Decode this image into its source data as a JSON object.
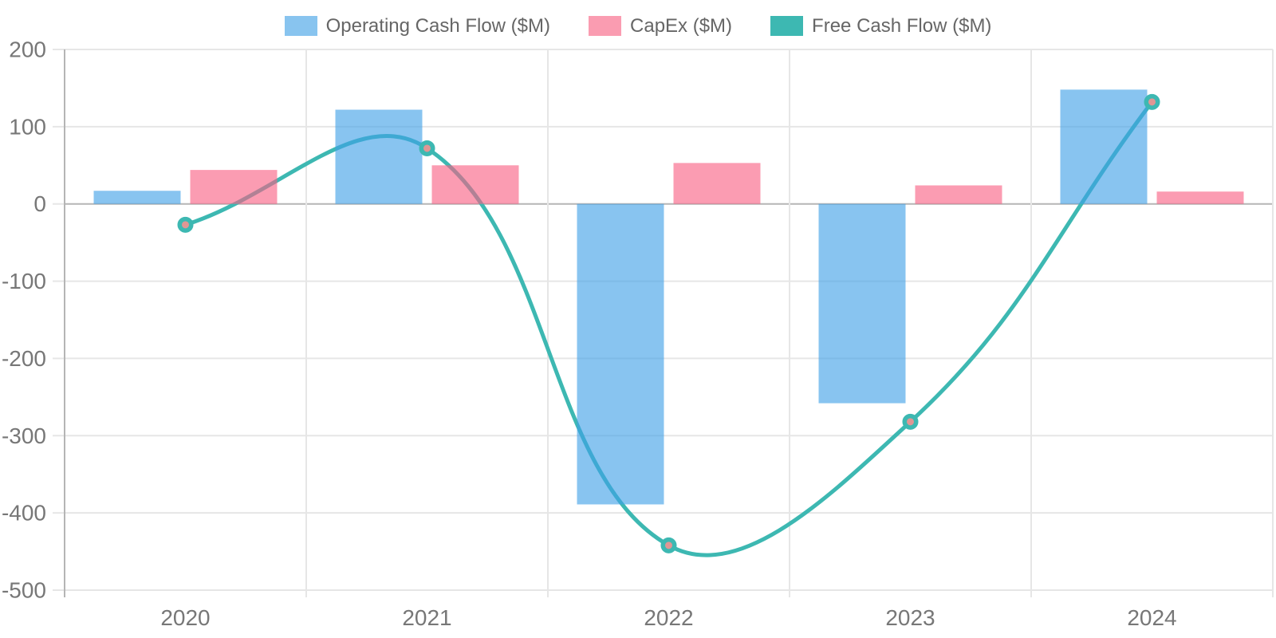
{
  "legend": {
    "items": [
      {
        "label": "Operating Cash Flow ($M)",
        "color": "#88C4EF"
      },
      {
        "label": "CapEx ($M)",
        "color": "#FA9CB1"
      },
      {
        "label": "Free Cash Flow ($M)",
        "color": "#3DB8B2"
      }
    ]
  },
  "chart_data": {
    "type": "bar",
    "subtype": "grouped-bars-with-smooth-line",
    "title": "",
    "xlabel": "",
    "ylabel": "",
    "categories": [
      "2020",
      "2021",
      "2022",
      "2023",
      "2024"
    ],
    "series": [
      {
        "name": "Operating Cash Flow ($M)",
        "type": "bar",
        "values": [
          17,
          122,
          -389,
          -258,
          148
        ],
        "color": "#3FA0E6",
        "opacity": 0.62
      },
      {
        "name": "CapEx ($M)",
        "type": "bar",
        "values": [
          44,
          50,
          53,
          24,
          16
        ],
        "color": "#F85F82",
        "opacity": 0.62
      },
      {
        "name": "Free Cash Flow ($M)",
        "type": "line",
        "values": [
          -27,
          72,
          -442,
          -282,
          132
        ],
        "color": "#3DB8B2",
        "marker_fill": "#E09694",
        "tension": 0.4,
        "line_width": 5
      }
    ],
    "ylim": [
      -500,
      200
    ],
    "ytick_step": 100,
    "y_tick_labels": [
      "200",
      "100",
      "0",
      "-100",
      "-200",
      "-300",
      "-400",
      "-500"
    ],
    "grid": true,
    "legend_position": "top",
    "colors": {
      "grid": "#E6E6E6",
      "zero_line": "#B5B5B5",
      "axis_line": "#B5B5B5",
      "tick_text": "#777777"
    }
  }
}
